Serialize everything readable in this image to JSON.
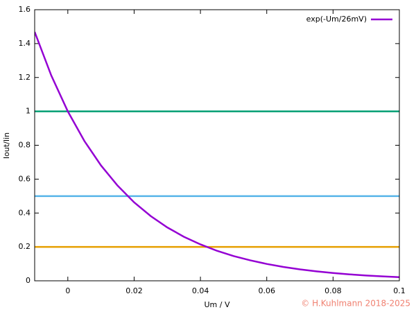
{
  "chart_data": {
    "type": "line",
    "xlabel": "Um / V",
    "ylabel": "Iout/Iin",
    "xlim": [
      -0.01,
      0.1
    ],
    "xticks": [
      0,
      0.02,
      0.04,
      0.06,
      0.08,
      0.1
    ],
    "ylim": [
      0,
      1.6
    ],
    "yticks": [
      0,
      0.2,
      0.4,
      0.6,
      0.8,
      1,
      1.2,
      1.4,
      1.6
    ],
    "legend": "upper right",
    "series": [
      {
        "name": "exp(-Um/26mV)",
        "color": "#9400d3",
        "x": [
          -0.01,
          -0.005,
          0,
          0.005,
          0.01,
          0.015,
          0.02,
          0.025,
          0.03,
          0.035,
          0.04,
          0.045,
          0.05,
          0.055,
          0.06,
          0.065,
          0.07,
          0.075,
          0.08,
          0.085,
          0.09,
          0.095,
          0.1
        ],
        "values": [
          1.469,
          1.212,
          1,
          0.825,
          0.681,
          0.562,
          0.463,
          0.382,
          0.315,
          0.26,
          0.215,
          0.177,
          0.146,
          0.121,
          0.0995,
          0.082,
          0.0677,
          0.0559,
          0.0461,
          0.038,
          0.0314,
          0.0259,
          0.0214
        ]
      },
      {
        "color": "#009e73",
        "x": [
          -0.01,
          0.1
        ],
        "values": [
          1,
          1
        ]
      },
      {
        "color": "#56b4e9",
        "x": [
          -0.01,
          0.1
        ],
        "values": [
          0.5,
          0.5
        ]
      },
      {
        "color": "#e69f00",
        "x": [
          -0.01,
          0.1
        ],
        "values": [
          0.2,
          0.2
        ]
      }
    ],
    "copyright": "© H.Kuhlmann 2018-2025"
  }
}
